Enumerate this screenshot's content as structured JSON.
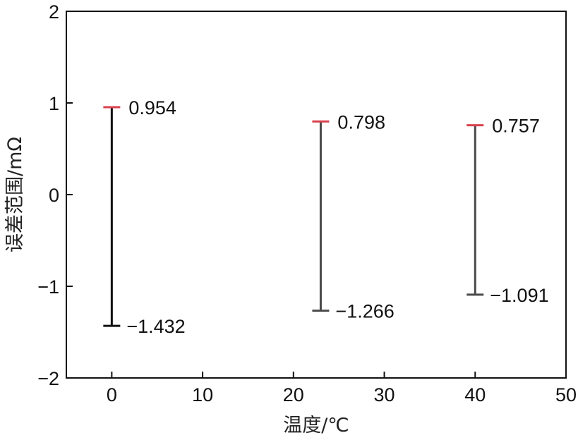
{
  "chart_data": {
    "type": "errorbar",
    "xlabel": "温度/℃",
    "ylabel": "误差范围/mΩ",
    "xlim": [
      -5,
      50
    ],
    "ylim": [
      -2,
      2
    ],
    "x_ticks": [
      0,
      10,
      20,
      30,
      40,
      50
    ],
    "y_ticks": [
      -2,
      -1,
      0,
      1,
      2
    ],
    "x_tick_labels": [
      "0",
      "10",
      "20",
      "30",
      "40",
      "50"
    ],
    "y_tick_labels": [
      "−2",
      "−1",
      "0",
      "1",
      "2"
    ],
    "grid": false,
    "points": [
      {
        "x": 0,
        "upper": 0.954,
        "lower": -1.432,
        "upper_label": "0.954",
        "lower_label": "−1.432",
        "bar_color": "#111111"
      },
      {
        "x": 23,
        "upper": 0.798,
        "lower": -1.266,
        "upper_label": "0.798",
        "lower_label": "−1.266",
        "bar_color": "#4a4a4a"
      },
      {
        "x": 40,
        "upper": 0.757,
        "lower": -1.091,
        "upper_label": "0.757",
        "lower_label": "−1.091",
        "bar_color": "#4a4a4a"
      }
    ],
    "upper_cap_color": "#d9414e",
    "axis_color": "#111111"
  }
}
